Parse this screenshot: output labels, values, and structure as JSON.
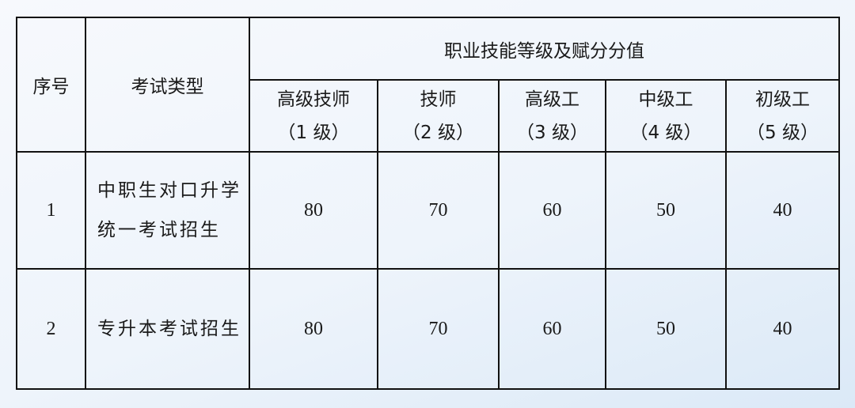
{
  "header": {
    "index": "序号",
    "exam_type": "考试类型",
    "group": "职业技能等级及赋分分值",
    "levels": [
      {
        "name": "高级技师",
        "grade": "（1 级）"
      },
      {
        "name": "技师",
        "grade": "（2 级）"
      },
      {
        "name": "高级工",
        "grade": "（3 级）"
      },
      {
        "name": "中级工",
        "grade": "（4 级）"
      },
      {
        "name": "初级工",
        "grade": "（5 级）"
      }
    ]
  },
  "rows": [
    {
      "index": "1",
      "type_line1": "中职生对口升学",
      "type_line2": "统一考试招生",
      "scores": [
        "80",
        "70",
        "60",
        "50",
        "40"
      ]
    },
    {
      "index": "2",
      "type_line1": "专升本考试招生",
      "type_line2": "",
      "scores": [
        "80",
        "70",
        "60",
        "50",
        "40"
      ]
    }
  ]
}
